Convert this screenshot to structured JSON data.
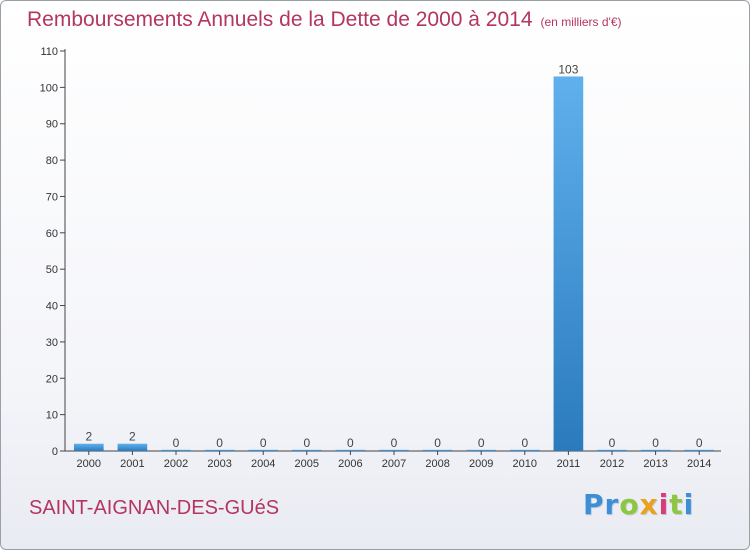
{
  "chart_data": {
    "type": "bar",
    "title": "Remboursements Annuels de la Dette de 2000 à 2014",
    "unit_label": "(en milliers d'€)",
    "xlabel": "",
    "ylabel": "",
    "ylim": [
      0,
      110
    ],
    "y_ticks": [
      0,
      10,
      20,
      30,
      40,
      50,
      60,
      70,
      80,
      90,
      100,
      110
    ],
    "grid": false,
    "categories": [
      "2000",
      "2001",
      "2002",
      "2003",
      "2004",
      "2005",
      "2006",
      "2007",
      "2008",
      "2009",
      "2010",
      "2011",
      "2012",
      "2013",
      "2014"
    ],
    "values": [
      2,
      2,
      0,
      0,
      0,
      0,
      0,
      0,
      0,
      0,
      0,
      103,
      0,
      0,
      0
    ],
    "data_labels": [
      "2",
      "2",
      "0",
      "0",
      "0",
      "0",
      "0",
      "0",
      "0",
      "0",
      "0",
      "103",
      "0",
      "0",
      "0"
    ],
    "bar_color": "#3a8fd6"
  },
  "footer": {
    "commune": "SAINT-AIGNAN-DES-GUéS",
    "logo_letters": [
      {
        "ch": "P",
        "color": "#3a8fd6"
      },
      {
        "ch": "r",
        "color": "#3a8fd6"
      },
      {
        "ch": "o",
        "color": "#8dc63f"
      },
      {
        "ch": "x",
        "color": "#e8a21d"
      },
      {
        "ch": "i",
        "color": "#d93c7a"
      },
      {
        "ch": "t",
        "color": "#8dc63f"
      },
      {
        "ch": "i",
        "color": "#3a8fd6"
      }
    ]
  }
}
